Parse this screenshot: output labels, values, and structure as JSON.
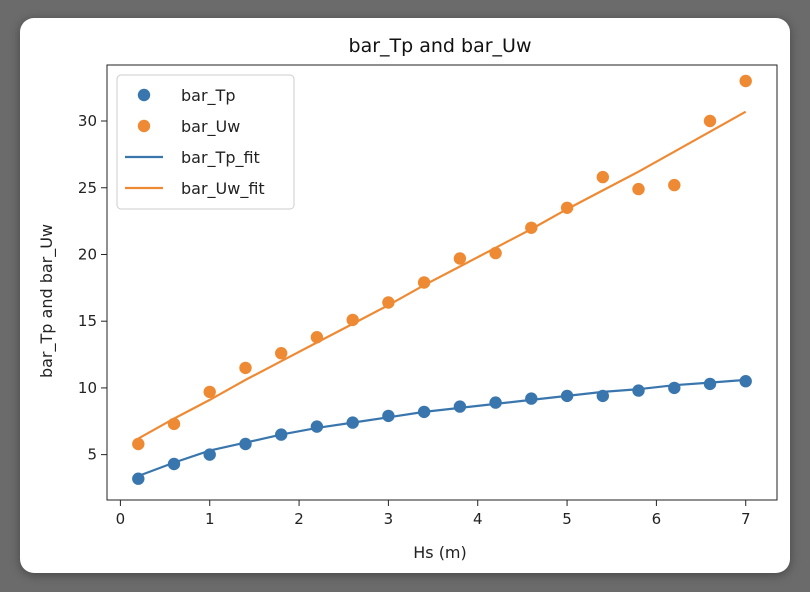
{
  "chart_data": {
    "type": "scatter",
    "title": "bar_Tp and bar_Uw",
    "xlabel": "Hs (m)",
    "ylabel": "bar_Tp and bar_Uw",
    "xlim": [
      -0.15,
      7.35
    ],
    "ylim": [
      1.6,
      34.2
    ],
    "xticks": [
      0,
      1,
      2,
      3,
      4,
      5,
      6,
      7
    ],
    "yticks": [
      5,
      10,
      15,
      20,
      25,
      30
    ],
    "grid": false,
    "legend": "top-left",
    "x": [
      0.2,
      0.6,
      1.0,
      1.4,
      1.8,
      2.2,
      2.6,
      3.0,
      3.4,
      3.8,
      4.2,
      4.6,
      5.0,
      5.4,
      5.8,
      6.2,
      6.6,
      7.0
    ],
    "series": [
      {
        "name": "bar_Tp",
        "kind": "scatter",
        "color": "#3a76ae",
        "values": [
          3.2,
          4.3,
          5.0,
          5.8,
          6.5,
          7.1,
          7.4,
          7.9,
          8.2,
          8.6,
          8.9,
          9.2,
          9.4,
          9.4,
          9.8,
          10.0,
          10.3,
          10.5
        ]
      },
      {
        "name": "bar_Uw",
        "kind": "scatter",
        "color": "#ef8a34",
        "values": [
          5.8,
          7.3,
          9.7,
          11.5,
          12.6,
          13.8,
          15.1,
          16.4,
          17.9,
          19.7,
          20.1,
          22.0,
          23.5,
          25.8,
          24.9,
          25.2,
          30.0,
          33.0
        ]
      },
      {
        "name": "bar_Tp_fit",
        "kind": "line",
        "color": "#3a76ae",
        "values": [
          3.4,
          4.4,
          5.3,
          5.9,
          6.5,
          7.0,
          7.4,
          7.8,
          8.2,
          8.5,
          8.8,
          9.1,
          9.4,
          9.7,
          9.9,
          10.2,
          10.4,
          10.6
        ]
      },
      {
        "name": "bar_Uw_fit",
        "kind": "line",
        "color": "#ef8a34",
        "values": [
          6.2,
          7.7,
          9.1,
          10.6,
          12.0,
          13.4,
          14.8,
          16.2,
          17.7,
          19.1,
          20.5,
          21.9,
          23.4,
          24.8,
          26.2,
          27.7,
          29.2,
          30.7
        ]
      }
    ]
  }
}
